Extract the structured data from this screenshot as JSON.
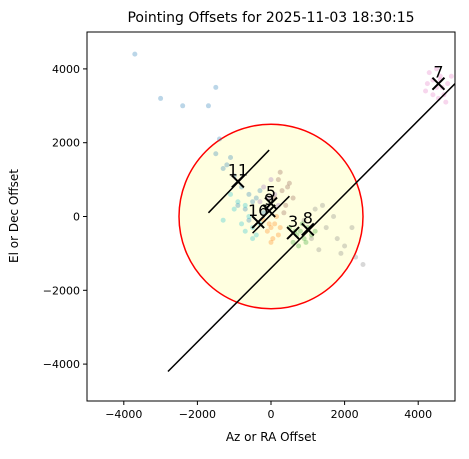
{
  "chart_data": {
    "type": "scatter",
    "title": "Pointing Offsets for 2025-11-03 18:30:15",
    "x_label": "Az or RA Offset",
    "y_label": "El or Dec Offset",
    "xlim": [
      -5000,
      5000
    ],
    "ylim": [
      -5000,
      5000
    ],
    "xticks": [
      {
        "value": -4000,
        "label": "−4000"
      },
      {
        "value": -2000,
        "label": "−2000"
      },
      0,
      2000,
      4000
    ],
    "yticks": [
      {
        "value": -4000,
        "label": "−4000"
      },
      {
        "value": -2000,
        "label": "−2000"
      },
      0,
      2000,
      4000
    ],
    "circle": {
      "center": [
        0,
        0
      ],
      "radius": 2500,
      "edgecolor": "#ff0000",
      "facecolor": "#ffffe0"
    },
    "lines": [
      {
        "x": [
          -2800,
          5000
        ],
        "y": [
          -4200,
          3600
        ],
        "color": "#000000"
      },
      {
        "x": [
          -1700,
          -50
        ],
        "y": [
          100,
          1800
        ],
        "color": "#000000"
      },
      {
        "x": [
          -500,
          500
        ],
        "y": [
          -450,
          550
        ],
        "color": "#000000"
      }
    ],
    "series": [
      {
        "color": "#1f77b4",
        "x": [
          -3700,
          -3000,
          -2400,
          -1500,
          -1700,
          -1400,
          -1500,
          -1200,
          -1000,
          -800,
          -600,
          -500,
          -400,
          -700,
          -900,
          -300,
          -200,
          -600,
          -1100,
          -1300
        ],
        "y": [
          4400,
          3200,
          3000,
          3500,
          3000,
          2100,
          1700,
          1400,
          1100,
          800,
          600,
          400,
          500,
          200,
          300,
          700,
          100,
          -100,
          1600,
          1300
        ]
      },
      {
        "color": "#17becf",
        "x": [
          -1300,
          -1000,
          -800,
          -700,
          -600,
          -500,
          -400,
          -900,
          -1100,
          -300,
          -700,
          -500
        ],
        "y": [
          -100,
          200,
          -200,
          -400,
          0,
          -300,
          -500,
          400,
          600,
          -200,
          300,
          -600
        ]
      },
      {
        "color": "#ff7f0e",
        "x": [
          -200,
          0,
          100,
          200,
          -100,
          50,
          150,
          -50,
          250,
          0
        ],
        "y": [
          -100,
          -300,
          -200,
          -500,
          -400,
          -600,
          0,
          -200,
          -300,
          -700
        ]
      },
      {
        "color": "#2ca02c",
        "x": [
          500,
          700,
          800,
          900,
          600,
          1000,
          1100,
          750,
          850,
          650,
          950,
          1200
        ],
        "y": [
          -300,
          -500,
          -400,
          -600,
          -700,
          -300,
          -500,
          -800,
          -200,
          -400,
          -700,
          -400
        ]
      },
      {
        "color": "#7f7f7f",
        "x": [
          900,
          1200,
          1500,
          1800,
          2000,
          2300,
          2500,
          1300,
          1700,
          2200,
          1100,
          1400,
          1900
        ],
        "y": [
          -100,
          200,
          -300,
          -600,
          -800,
          -1100,
          -1300,
          -900,
          0,
          -300,
          -600,
          300,
          -1000
        ]
      },
      {
        "color": "#8c564b",
        "x": [
          100,
          300,
          400,
          500,
          200,
          350,
          600,
          250,
          450
        ],
        "y": [
          500,
          700,
          300,
          900,
          1000,
          100,
          500,
          1200,
          800
        ]
      },
      {
        "color": "#9467bd",
        "x": [
          -300,
          -100,
          100,
          -200,
          0,
          200,
          -50
        ],
        "y": [
          400,
          200,
          600,
          800,
          1000,
          300,
          500
        ]
      },
      {
        "color": "#e377c2",
        "x": [
          4200,
          4400,
          4500,
          4600,
          4700,
          4800,
          4300,
          4550,
          4650,
          4400,
          4900,
          4500,
          4250,
          4750,
          4600
        ],
        "y": [
          3400,
          3700,
          3500,
          3800,
          3300,
          3600,
          3900,
          3200,
          3500,
          3300,
          3800,
          4000,
          3600,
          3100,
          3700
        ]
      }
    ],
    "annotations": [
      {
        "text": "7",
        "x": 4550,
        "y": 3600
      },
      {
        "text": "11",
        "x": -900,
        "y": 950
      },
      {
        "text": "5",
        "x": 0,
        "y": 350
      },
      {
        "text": "9",
        "x": -50,
        "y": 150
      },
      {
        "text": "16",
        "x": -350,
        "y": -150
      },
      {
        "text": "3",
        "x": 600,
        "y": -450
      },
      {
        "text": "8",
        "x": 1000,
        "y": -350
      }
    ]
  }
}
